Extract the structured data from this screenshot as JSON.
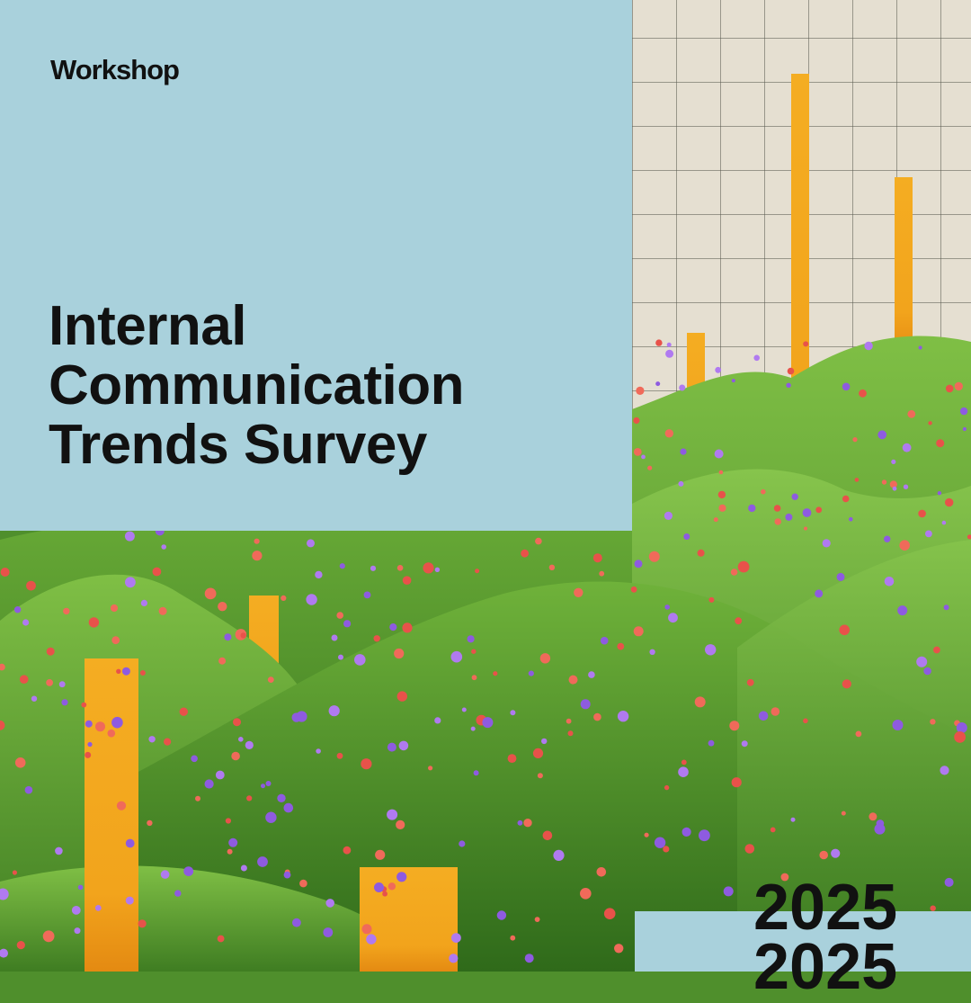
{
  "brand": {
    "logo_text": "Workshop"
  },
  "headline": {
    "line1": "Internal",
    "line2": "Communication",
    "line3": "Trends Survey"
  },
  "year": {
    "ghost_text": "2025",
    "main_text": "2025"
  },
  "colors": {
    "panel_blue": "#a9d1dc",
    "grid_background": "#e5dfd1",
    "bar_orange": "#f2a41c",
    "grass_green": "#4f8f2c",
    "text": "#111111"
  },
  "illustration": {
    "bars": [
      {
        "name": "tall-grid-bar"
      },
      {
        "name": "right-grid-bar"
      },
      {
        "name": "left-grid-bar"
      },
      {
        "name": "short-right-bar"
      },
      {
        "name": "mid-hill-bar"
      },
      {
        "name": "left-hill-bar"
      },
      {
        "name": "big-left-bar"
      },
      {
        "name": "bottom-wide-bar"
      }
    ],
    "flower_colors": [
      "#8e5be0",
      "#e8524a",
      "#b07af0",
      "#f06a5a"
    ]
  }
}
